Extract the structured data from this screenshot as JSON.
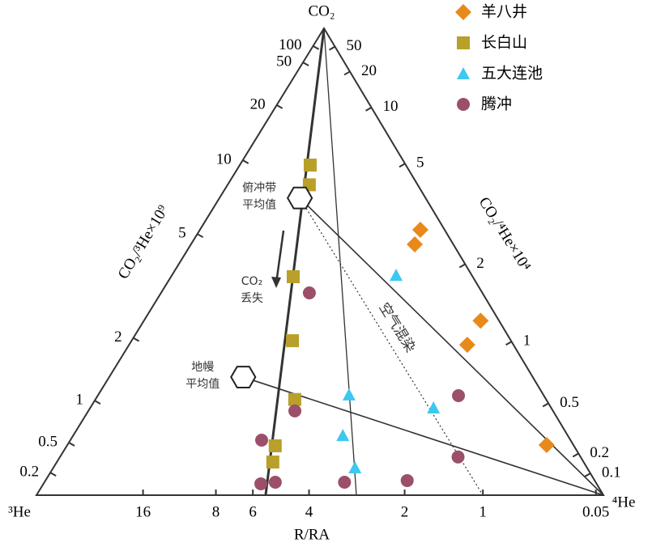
{
  "chart_data": {
    "type": "ternary",
    "apex_labels": {
      "top": "CO₂",
      "left": "³He",
      "right": "⁴He"
    },
    "left_axis": {
      "title": "CO₂/³He×10⁹",
      "ticks": [
        0.2,
        0.5,
        1,
        2,
        5,
        10,
        20,
        50,
        100
      ]
    },
    "right_axis": {
      "title": "CO₂/⁴He×10⁴",
      "ticks": [
        0.1,
        0.2,
        0.5,
        1,
        2,
        5,
        10,
        20,
        50
      ]
    },
    "bottom_axis": {
      "title": "R/RA",
      "ticks": [
        16,
        8,
        6,
        4,
        2,
        1,
        0.05
      ]
    },
    "series": [
      {
        "name": "羊八井",
        "color": "#e8891c",
        "marker": "diamond",
        "co2_3he": [
          52.4,
          31.1,
          45.2,
          15.6,
          8.95
        ],
        "r_ra": [
          0.407,
          0.638,
          0.203,
          0.505,
          0.207
        ]
      },
      {
        "name": "长白山",
        "color": "#b8a02a",
        "marker": "square",
        "co2_3he": [
          16.5,
          13.7,
          5.82,
          3.38,
          1.82,
          0.79,
          0.51
        ],
        "r_ra": [
          5.03,
          4.91,
          5.44,
          5.03,
          4.67,
          5.31,
          5.33
        ]
      },
      {
        "name": "五大连池",
        "color": "#3cc8f0",
        "marker": "triangle",
        "co2_3he": [
          13.9,
          2.47,
          3.55,
          1.27,
          0.566
        ],
        "r_ra": [
          1.25,
          2.87,
          1.27,
          3.09,
          2.85
        ]
      },
      {
        "name": "腾冲",
        "color": "#9b4f6a",
        "marker": "circle",
        "co2_3he": [
          5.59,
          1.56,
          0.852,
          5.57,
          1.49,
          0.162,
          0.193,
          0.246,
          0.372
        ],
        "r_ra": [
          4.32,
          4.63,
          5.98,
          0.877,
          1.14,
          5.72,
          5.14,
          3.1,
          1.92
        ]
      }
    ],
    "endmembers": [
      {
        "label": [
          "俯冲带",
          "平均值"
        ],
        "co2_3he": 11.3,
        "r_ra": 5.8
      },
      {
        "label": [
          "地幔",
          "平均值"
        ],
        "co2_3he": 1.95,
        "r_ra": 8.0
      }
    ],
    "r_ra_lines": [
      5.46,
      2.86
    ],
    "co2_loss_label": [
      "CO₂",
      "丢失"
    ],
    "air_mixing": {
      "label": "空气混染",
      "r_ra": 1
    }
  }
}
